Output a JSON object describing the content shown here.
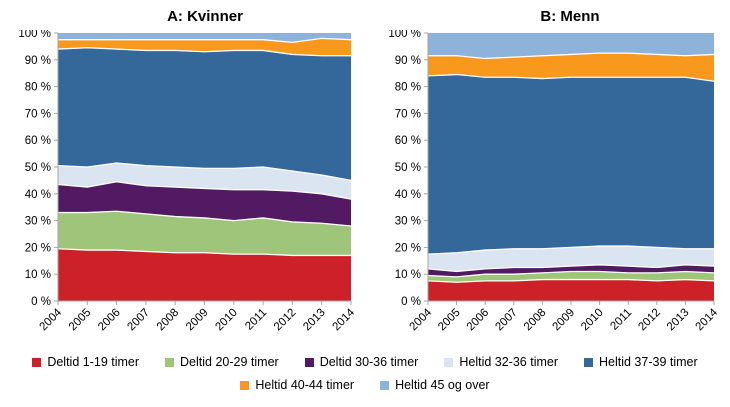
{
  "chart_data": [
    {
      "type": "area",
      "stacked": true,
      "percent": true,
      "title": "A: Kvinner",
      "categories": [
        "2004",
        "2005",
        "2006",
        "2007",
        "2008",
        "2009",
        "2010",
        "2011",
        "2012",
        "2013",
        "2014"
      ],
      "xlabel": "",
      "ylabel": "",
      "ylim": [
        0,
        100
      ],
      "ytick_labels": [
        "0 %",
        "10 %",
        "20 %",
        "30 %",
        "40 %",
        "50 %",
        "60 %",
        "70 %",
        "80 %",
        "90 %",
        "100 %"
      ],
      "grid": false,
      "series": [
        {
          "name": "Deltid 1-19 timer",
          "color": "#CC2128",
          "values": [
            19.5,
            19,
            19,
            18.5,
            18,
            18,
            17.5,
            17.5,
            17,
            17,
            17
          ]
        },
        {
          "name": "Deltid 20-29 timer",
          "color": "#9EC579",
          "values": [
            13.5,
            14,
            14.5,
            14,
            13.5,
            13,
            12.5,
            13.5,
            12.5,
            12,
            11
          ]
        },
        {
          "name": "Deltid 30-36 timer",
          "color": "#521A63",
          "values": [
            10.5,
            9.5,
            11,
            10.5,
            11,
            11,
            11.5,
            10.5,
            11.5,
            11,
            10
          ]
        },
        {
          "name": "Heltid 32-36 timer",
          "color": "#DBE4F1",
          "values": [
            7,
            7.5,
            7,
            7.5,
            7.5,
            7.5,
            8,
            8.5,
            7.5,
            7,
            7
          ]
        },
        {
          "name": "Heltid 37-39 timer",
          "color": "#34689A",
          "values": [
            43.5,
            44.5,
            42.5,
            43,
            43.5,
            43.5,
            44,
            43.5,
            43.5,
            44.5,
            46.5
          ]
        },
        {
          "name": "Heltid 40-44 timer",
          "color": "#F8981D",
          "values": [
            3.5,
            3,
            3.5,
            4,
            4,
            4.5,
            4,
            4,
            4.5,
            6.5,
            6
          ]
        },
        {
          "name": "Heltid 45 og over",
          "color": "#8EB3DB",
          "values": [
            2.5,
            2.5,
            2.5,
            2.5,
            2.5,
            2.5,
            2.5,
            2.5,
            3.5,
            2,
            2.5
          ]
        }
      ]
    },
    {
      "type": "area",
      "stacked": true,
      "percent": true,
      "title": "B: Menn",
      "categories": [
        "2004",
        "2005",
        "2006",
        "2007",
        "2008",
        "2009",
        "2010",
        "2011",
        "2012",
        "2013",
        "2014"
      ],
      "xlabel": "",
      "ylabel": "",
      "ylim": [
        0,
        100
      ],
      "ytick_labels": [
        "0 %",
        "10 %",
        "20 %",
        "30 %",
        "40 %",
        "50 %",
        "60 %",
        "70 %",
        "80 %",
        "90 %",
        "100 %"
      ],
      "grid": false,
      "series": [
        {
          "name": "Deltid 1-19 timer",
          "color": "#CC2128",
          "values": [
            7.5,
            7,
            7.5,
            7.5,
            8,
            8,
            8,
            8,
            7.5,
            8,
            7.5
          ]
        },
        {
          "name": "Deltid 20-29 timer",
          "color": "#9EC579",
          "values": [
            2,
            2,
            2.5,
            2.5,
            2.5,
            3,
            3,
            2.5,
            3,
            3,
            3
          ]
        },
        {
          "name": "Deltid 30-36 timer",
          "color": "#521A63",
          "values": [
            2.5,
            2,
            2,
            2.5,
            2,
            2,
            2.5,
            2.5,
            2,
            2.5,
            2.5
          ]
        },
        {
          "name": "Heltid 32-36 timer",
          "color": "#DBE4F1",
          "values": [
            5.5,
            7,
            7,
            7,
            7,
            7,
            7,
            7.5,
            7.5,
            6,
            6.5
          ]
        },
        {
          "name": "Heltid 37-39 timer",
          "color": "#34689A",
          "values": [
            66.5,
            66.5,
            64.5,
            64,
            63.5,
            63.5,
            63,
            63,
            63.5,
            64,
            62.5
          ]
        },
        {
          "name": "Heltid 40-44 timer",
          "color": "#F8981D",
          "values": [
            7.5,
            7,
            7,
            7.5,
            8.5,
            8.5,
            9,
            9,
            8.5,
            8,
            10
          ]
        },
        {
          "name": "Heltid 45 og over",
          "color": "#8EB3DB",
          "values": [
            8.5,
            8.5,
            9.5,
            9,
            8.5,
            8,
            7.5,
            7.5,
            8,
            8.5,
            8
          ]
        }
      ]
    }
  ],
  "legend": {
    "rows": [
      [
        0,
        1,
        2,
        3,
        4
      ],
      [
        5,
        6
      ]
    ]
  },
  "style": {
    "axis_color": "#A6A6A6",
    "text_color": "#000000",
    "separator_color": "#FFFFFF"
  }
}
